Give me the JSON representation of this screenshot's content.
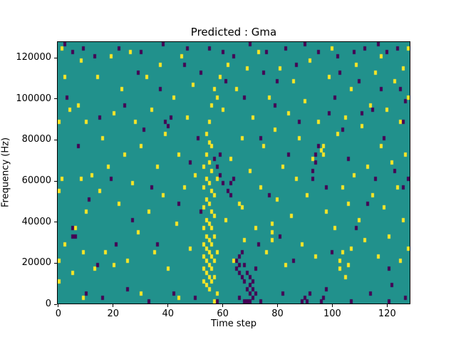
{
  "figure": {
    "background": "#ffffff"
  },
  "chart_data": {
    "type": "heatmap",
    "title": "Predicted : Gma",
    "xlabel": "Time step",
    "ylabel": "Frequency (Hz)",
    "grid": false,
    "legend": "none",
    "n_time_steps": 129,
    "n_freq_bins": 64,
    "freq_bin_hz": 2000,
    "x_range": [
      0,
      128
    ],
    "y_range_hz": [
      0,
      128000
    ],
    "xticks": [
      0,
      20,
      40,
      60,
      80,
      100,
      120
    ],
    "yticks": [
      0,
      20000,
      40000,
      60000,
      80000,
      100000,
      120000
    ],
    "colors": {
      "background": "#21918c",
      "high": "#fde725",
      "low": "#440154"
    },
    "cells_high": [
      [
        0,
        5
      ],
      [
        0,
        10
      ],
      [
        0,
        27
      ],
      [
        0,
        44
      ],
      [
        1,
        30
      ],
      [
        1,
        62
      ],
      [
        2,
        14
      ],
      [
        2,
        55
      ],
      [
        4,
        47
      ],
      [
        5,
        7
      ],
      [
        6,
        18
      ],
      [
        7,
        48
      ],
      [
        8,
        30
      ],
      [
        8,
        59
      ],
      [
        9,
        1
      ],
      [
        9,
        12
      ],
      [
        10,
        22
      ],
      [
        10,
        44
      ],
      [
        12,
        31
      ],
      [
        13,
        8
      ],
      [
        14,
        55
      ],
      [
        15,
        27
      ],
      [
        16,
        40
      ],
      [
        17,
        12
      ],
      [
        18,
        33
      ],
      [
        19,
        60
      ],
      [
        20,
        9
      ],
      [
        20,
        46
      ],
      [
        22,
        24
      ],
      [
        23,
        52
      ],
      [
        24,
        36
      ],
      [
        25,
        10
      ],
      [
        26,
        61
      ],
      [
        27,
        29
      ],
      [
        28,
        44
      ],
      [
        29,
        17
      ],
      [
        30,
        2
      ],
      [
        30,
        38
      ],
      [
        32,
        55
      ],
      [
        33,
        22
      ],
      [
        34,
        47
      ],
      [
        35,
        12
      ],
      [
        36,
        33
      ],
      [
        37,
        58
      ],
      [
        38,
        26
      ],
      [
        39,
        41
      ],
      [
        40,
        8
      ],
      [
        42,
        50
      ],
      [
        43,
        19
      ],
      [
        44,
        1
      ],
      [
        44,
        36
      ],
      [
        45,
        60
      ],
      [
        46,
        28
      ],
      [
        47,
        45
      ],
      [
        48,
        13
      ],
      [
        49,
        53
      ],
      [
        50,
        31
      ],
      [
        53,
        5
      ],
      [
        53,
        8
      ],
      [
        53,
        11
      ],
      [
        53,
        14
      ],
      [
        53,
        18
      ],
      [
        53,
        23
      ],
      [
        53,
        28
      ],
      [
        53,
        33
      ],
      [
        54,
        4
      ],
      [
        54,
        7
      ],
      [
        54,
        10
      ],
      [
        54,
        13
      ],
      [
        54,
        16
      ],
      [
        54,
        20
      ],
      [
        54,
        25
      ],
      [
        54,
        30
      ],
      [
        54,
        36
      ],
      [
        54,
        41
      ],
      [
        55,
        3
      ],
      [
        55,
        6
      ],
      [
        55,
        9
      ],
      [
        55,
        12
      ],
      [
        55,
        15
      ],
      [
        55,
        19
      ],
      [
        55,
        24
      ],
      [
        55,
        29
      ],
      [
        55,
        34
      ],
      [
        55,
        39
      ],
      [
        55,
        44
      ],
      [
        56,
        5
      ],
      [
        56,
        8
      ],
      [
        56,
        11
      ],
      [
        56,
        14
      ],
      [
        56,
        18
      ],
      [
        56,
        22
      ],
      [
        56,
        27
      ],
      [
        56,
        32
      ],
      [
        56,
        38
      ],
      [
        56,
        48
      ],
      [
        57,
        0
      ],
      [
        57,
        6
      ],
      [
        57,
        10
      ],
      [
        57,
        16
      ],
      [
        57,
        21
      ],
      [
        57,
        26
      ],
      [
        57,
        52
      ],
      [
        58,
        2
      ],
      [
        58,
        12
      ],
      [
        58,
        30
      ],
      [
        58,
        50
      ],
      [
        59,
        55
      ],
      [
        60,
        47
      ],
      [
        61,
        20
      ],
      [
        62,
        58
      ],
      [
        63,
        35
      ],
      [
        64,
        10
      ],
      [
        65,
        52
      ],
      [
        66,
        24
      ],
      [
        67,
        23
      ],
      [
        67,
        40
      ],
      [
        68,
        15
      ],
      [
        69,
        57
      ],
      [
        70,
        32
      ],
      [
        71,
        45
      ],
      [
        72,
        18
      ],
      [
        73,
        61
      ],
      [
        74,
        28
      ],
      [
        75,
        38
      ],
      [
        76,
        12
      ],
      [
        77,
        50
      ],
      [
        78,
        15
      ],
      [
        78,
        17
      ],
      [
        78,
        19
      ],
      [
        79,
        42
      ],
      [
        80,
        25
      ],
      [
        81,
        57
      ],
      [
        82,
        33
      ],
      [
        83,
        9
      ],
      [
        84,
        46
      ],
      [
        85,
        21
      ],
      [
        86,
        54
      ],
      [
        87,
        30
      ],
      [
        88,
        40
      ],
      [
        89,
        14
      ],
      [
        90,
        49
      ],
      [
        91,
        26
      ],
      [
        92,
        59
      ],
      [
        93,
        35
      ],
      [
        94,
        11
      ],
      [
        95,
        44
      ],
      [
        96,
        37
      ],
      [
        97,
        36
      ],
      [
        97,
        38
      ],
      [
        98,
        22
      ],
      [
        99,
        55
      ],
      [
        100,
        62
      ],
      [
        101,
        18
      ],
      [
        102,
        41
      ],
      [
        103,
        8
      ],
      [
        103,
        10
      ],
      [
        104,
        12
      ],
      [
        104,
        28
      ],
      [
        105,
        6
      ],
      [
        105,
        45
      ],
      [
        106,
        9
      ],
      [
        106,
        24
      ],
      [
        107,
        13
      ],
      [
        107,
        52
      ],
      [
        108,
        31
      ],
      [
        109,
        58
      ],
      [
        110,
        20
      ],
      [
        111,
        43
      ],
      [
        112,
        15
      ],
      [
        113,
        33
      ],
      [
        114,
        48
      ],
      [
        115,
        26
      ],
      [
        116,
        56
      ],
      [
        117,
        11
      ],
      [
        118,
        38
      ],
      [
        118,
        60
      ],
      [
        119,
        23
      ],
      [
        120,
        47
      ],
      [
        121,
        16
      ],
      [
        122,
        34
      ],
      [
        123,
        54
      ],
      [
        124,
        28
      ],
      [
        125,
        10
      ],
      [
        125,
        44
      ],
      [
        126,
        20
      ],
      [
        126,
        57
      ],
      [
        127,
        36
      ],
      [
        128,
        13
      ],
      [
        128,
        50
      ],
      [
        128,
        62
      ]
    ],
    "cells_low": [
      [
        2,
        63
      ],
      [
        5,
        61
      ],
      [
        9,
        62
      ],
      [
        13,
        60
      ],
      [
        22,
        62
      ],
      [
        30,
        61
      ],
      [
        38,
        63
      ],
      [
        47,
        62
      ],
      [
        55,
        62
      ],
      [
        60,
        61
      ],
      [
        64,
        60
      ],
      [
        70,
        63
      ],
      [
        76,
        61
      ],
      [
        83,
        62
      ],
      [
        90,
        63
      ],
      [
        95,
        61
      ],
      [
        102,
        60
      ],
      [
        108,
        61
      ],
      [
        112,
        62
      ],
      [
        117,
        63
      ],
      [
        120,
        61
      ],
      [
        124,
        62
      ],
      [
        3,
        50
      ],
      [
        7,
        38
      ],
      [
        11,
        25
      ],
      [
        15,
        45
      ],
      [
        19,
        30
      ],
      [
        21,
        14
      ],
      [
        24,
        48
      ],
      [
        27,
        20
      ],
      [
        31,
        42
      ],
      [
        34,
        28
      ],
      [
        37,
        52
      ],
      [
        39,
        44
      ],
      [
        40,
        43
      ],
      [
        41,
        45
      ],
      [
        44,
        24
      ],
      [
        48,
        34
      ],
      [
        51,
        40
      ],
      [
        52,
        22
      ],
      [
        57,
        35
      ],
      [
        58,
        33
      ],
      [
        59,
        31
      ],
      [
        59,
        36
      ],
      [
        60,
        29
      ],
      [
        62,
        27
      ],
      [
        63,
        26
      ],
      [
        63,
        29
      ],
      [
        64,
        30
      ],
      [
        65,
        8
      ],
      [
        65,
        10
      ],
      [
        66,
        7
      ],
      [
        66,
        9
      ],
      [
        66,
        11
      ],
      [
        67,
        6
      ],
      [
        67,
        12
      ],
      [
        68,
        0
      ],
      [
        68,
        5
      ],
      [
        68,
        9
      ],
      [
        69,
        0
      ],
      [
        69,
        3
      ],
      [
        69,
        7
      ],
      [
        70,
        0
      ],
      [
        70,
        2
      ],
      [
        70,
        4
      ],
      [
        70,
        6
      ],
      [
        71,
        1
      ],
      [
        71,
        3
      ],
      [
        71,
        5
      ],
      [
        72,
        2
      ],
      [
        72,
        8
      ],
      [
        73,
        14
      ],
      [
        74,
        40
      ],
      [
        77,
        26
      ],
      [
        79,
        48
      ],
      [
        81,
        16
      ],
      [
        84,
        36
      ],
      [
        86,
        10
      ],
      [
        88,
        44
      ],
      [
        89,
        0
      ],
      [
        90,
        1
      ],
      [
        91,
        0
      ],
      [
        92,
        2
      ],
      [
        93,
        30
      ],
      [
        93,
        32
      ],
      [
        94,
        34
      ],
      [
        94,
        36
      ],
      [
        95,
        38
      ],
      [
        96,
        0
      ],
      [
        97,
        1
      ],
      [
        98,
        28
      ],
      [
        100,
        12
      ],
      [
        101,
        50
      ],
      [
        104,
        42
      ],
      [
        106,
        35
      ],
      [
        109,
        18
      ],
      [
        111,
        46
      ],
      [
        113,
        24
      ],
      [
        115,
        47
      ],
      [
        116,
        30
      ],
      [
        119,
        40
      ],
      [
        121,
        8
      ],
      [
        122,
        4
      ],
      [
        123,
        32
      ],
      [
        125,
        52
      ],
      [
        126,
        28
      ],
      [
        127,
        49
      ],
      [
        128,
        30
      ],
      [
        10,
        2
      ],
      [
        16,
        1
      ],
      [
        25,
        3
      ],
      [
        33,
        0
      ],
      [
        42,
        2
      ],
      [
        50,
        1
      ],
      [
        58,
        0
      ],
      [
        66,
        1
      ],
      [
        74,
        0
      ],
      [
        82,
        2
      ],
      [
        98,
        3
      ],
      [
        107,
        0
      ],
      [
        114,
        2
      ],
      [
        121,
        0
      ],
      [
        127,
        1
      ],
      [
        5,
        16
      ],
      [
        5,
        18
      ],
      [
        6,
        16
      ],
      [
        6,
        18
      ],
      [
        14,
        9
      ],
      [
        29,
        56
      ],
      [
        36,
        14
      ],
      [
        46,
        58
      ],
      [
        52,
        56
      ],
      [
        61,
        54
      ],
      [
        68,
        50
      ],
      [
        75,
        56
      ],
      [
        80,
        54
      ],
      [
        87,
        58
      ],
      [
        99,
        46
      ],
      [
        103,
        56
      ],
      [
        110,
        54
      ],
      [
        118,
        52
      ],
      [
        126,
        44
      ]
    ]
  }
}
